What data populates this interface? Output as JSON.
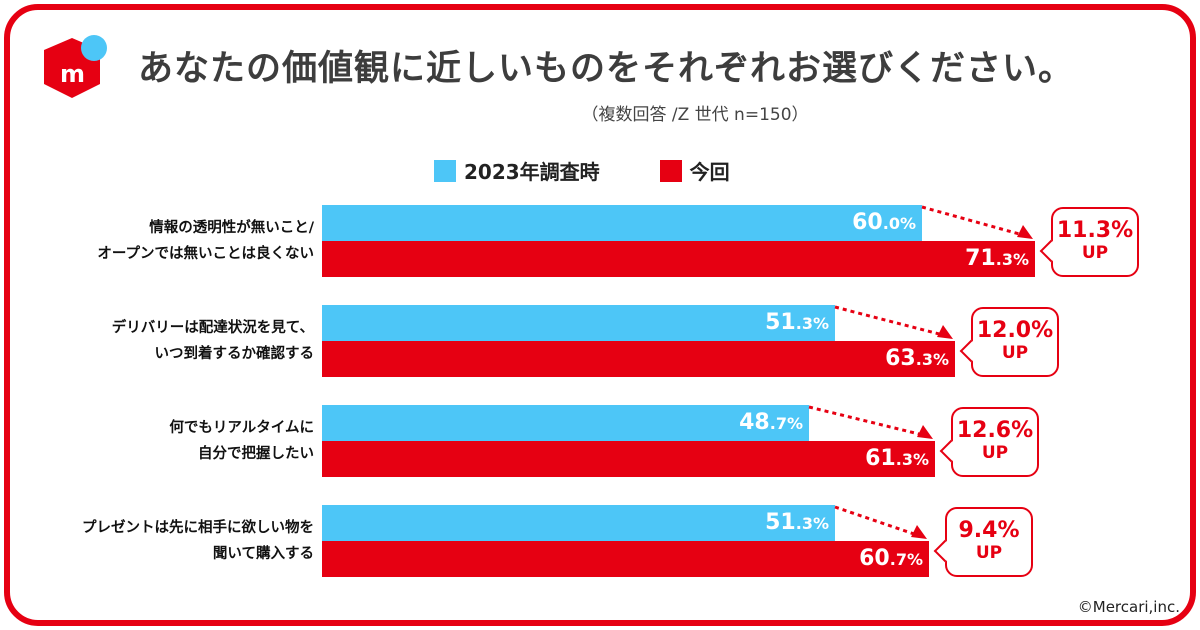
{
  "header": {
    "title": "あなたの価値観に近しいものをそれぞれお選びください。",
    "subtitle": "（複数回答 /Z 世代 n=150）",
    "logo_text": "m"
  },
  "colors": {
    "series_2023": "#4dc6f7",
    "series_now": "#e60012",
    "brand": "#e60012",
    "title": "#3d3d3d"
  },
  "chart_data": {
    "type": "bar",
    "orientation": "horizontal",
    "categories": [
      [
        "情報の透明性が無いこと/",
        "オープンでは無いことは良くない"
      ],
      [
        "デリバリーは配達状況を見て、",
        "いつ到着するか確認する"
      ],
      [
        "何でもリアルタイムに",
        "自分で把握したい"
      ],
      [
        "プレゼントは先に相手に欲しい物を",
        "聞いて購入する"
      ]
    ],
    "series": [
      {
        "name": "2023年調査時",
        "values": [
          60.0,
          51.3,
          48.7,
          51.3
        ]
      },
      {
        "name": "今回",
        "values": [
          71.3,
          63.3,
          61.3,
          60.7
        ]
      }
    ],
    "annotations": [
      {
        "pct": "11.3%",
        "label": "UP"
      },
      {
        "pct": "12.0%",
        "label": "UP"
      },
      {
        "pct": "12.6%",
        "label": "UP"
      },
      {
        "pct": "9.4%",
        "label": "UP"
      }
    ],
    "unit": "%",
    "legend": "top",
    "grid": false
  },
  "footer": {
    "copyright": "©Mercari,inc."
  }
}
